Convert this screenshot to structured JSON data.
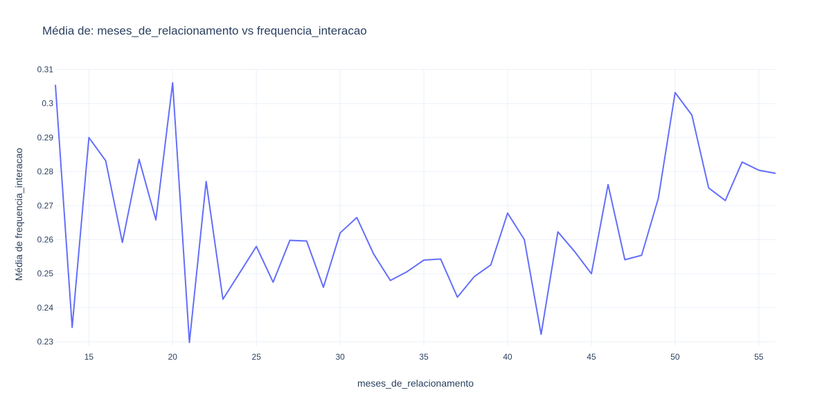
{
  "chart_data": {
    "type": "line",
    "title": "Média de: meses_de_relacionamento vs frequencia_interacao",
    "xlabel": "meses_de_relacionamento",
    "ylabel": "Média de frequencia_interacao",
    "xlim": [
      13,
      56
    ],
    "ylim": [
      0.2288,
      0.3101
    ],
    "xticks": [
      15,
      20,
      25,
      30,
      35,
      40,
      45,
      50,
      55
    ],
    "yticks": [
      0.23,
      0.24,
      0.25,
      0.26,
      0.27,
      0.28,
      0.29,
      0.3,
      0.31
    ],
    "ytick_labels": [
      "0.23",
      "0.24",
      "0.25",
      "0.26",
      "0.27",
      "0.28",
      "0.29",
      "0.3",
      "0.31"
    ],
    "grid": true,
    "color": "#636efa",
    "series": [
      {
        "x": [
          13,
          14,
          15,
          16,
          17,
          18,
          19,
          20,
          21,
          22,
          23,
          24,
          25,
          26,
          27,
          28,
          29,
          30,
          31,
          32,
          33,
          34,
          35,
          36,
          37,
          38,
          39,
          40,
          41,
          42,
          43,
          44,
          45,
          46,
          47,
          48,
          49,
          50,
          51,
          52,
          53,
          54,
          55,
          56
        ],
        "values": [
          0.3055,
          0.2342,
          0.29,
          0.2832,
          0.2592,
          0.2836,
          0.2658,
          0.3061,
          0.2298,
          0.2771,
          0.2425,
          0.2502,
          0.258,
          0.2475,
          0.2598,
          0.2596,
          0.246,
          0.262,
          0.2665,
          0.2558,
          0.248,
          0.2506,
          0.254,
          0.2543,
          0.2431,
          0.2491,
          0.2526,
          0.2678,
          0.26,
          0.2322,
          0.2623,
          0.2565,
          0.25,
          0.2762,
          0.2541,
          0.2554,
          0.2722,
          0.3032,
          0.2966,
          0.2752,
          0.2715,
          0.2828,
          0.2804,
          0.2795
        ]
      }
    ]
  }
}
